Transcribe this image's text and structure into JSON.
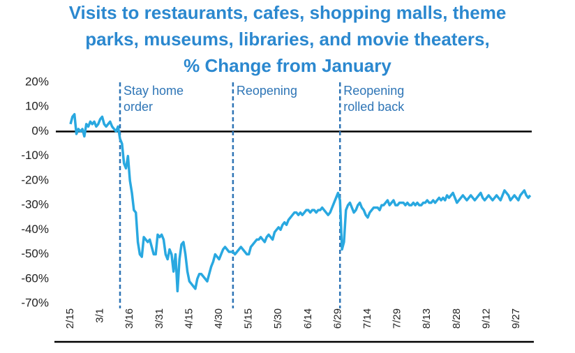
{
  "chart_data": {
    "type": "line",
    "title": [
      "Visits to restaurants, cafes, shopping malls, theme",
      "parks, museums, libraries, and movie theaters,",
      "% Change from January"
    ],
    "categories": [
      "2/15",
      null,
      null,
      null,
      null,
      null,
      null,
      null,
      null,
      null,
      null,
      null,
      null,
      null,
      null,
      "3/1",
      null,
      null,
      null,
      null,
      null,
      null,
      null,
      null,
      null,
      null,
      null,
      null,
      null,
      null,
      "3/16",
      null,
      null,
      null,
      null,
      null,
      null,
      null,
      null,
      null,
      null,
      null,
      null,
      null,
      null,
      "3/31",
      null,
      null,
      null,
      null,
      null,
      null,
      null,
      null,
      null,
      null,
      null,
      null,
      null,
      null,
      "4/15",
      null,
      null,
      null,
      null,
      null,
      null,
      null,
      null,
      null,
      null,
      null,
      null,
      null,
      null,
      "4/30",
      null,
      null,
      null,
      null,
      null,
      null,
      null,
      null,
      null,
      null,
      null,
      null,
      null,
      null,
      "5/15",
      null,
      null,
      null,
      null,
      null,
      null,
      null,
      null,
      null,
      null,
      null,
      null,
      null,
      null,
      "5/30",
      null,
      null,
      null,
      null,
      null,
      null,
      null,
      null,
      null,
      null,
      null,
      null,
      null,
      null,
      "6/14",
      null,
      null,
      null,
      null,
      null,
      null,
      null,
      null,
      null,
      null,
      null,
      null,
      null,
      null,
      "6/29",
      null,
      null,
      null,
      null,
      null,
      null,
      null,
      null,
      null,
      null,
      null,
      null,
      null,
      null,
      "7/14",
      null,
      null,
      null,
      null,
      null,
      null,
      null,
      null,
      null,
      null,
      null,
      null,
      null,
      null,
      "7/29",
      null,
      null,
      null,
      null,
      null,
      null,
      null,
      null,
      null,
      null,
      null,
      null,
      null,
      null,
      "8/13",
      null,
      null,
      null,
      null,
      null,
      null,
      null,
      null,
      null,
      null,
      null,
      null,
      null,
      null,
      "8/28",
      null,
      null,
      null,
      null,
      null,
      null,
      null,
      null,
      null,
      null,
      null,
      null,
      null,
      null,
      "9/12",
      null,
      null,
      null,
      null,
      null,
      null,
      null,
      null,
      null,
      null,
      null,
      null,
      null,
      null,
      "9/27",
      null,
      null,
      null,
      null,
      null,
      null,
      null
    ],
    "values": [
      3,
      6,
      7,
      -1,
      1,
      0,
      1,
      -2,
      3,
      2,
      4,
      3,
      4,
      2,
      3,
      5,
      6,
      3,
      2,
      3,
      4,
      2,
      1,
      0,
      2,
      -3,
      -5,
      -13,
      -15,
      -10,
      -20,
      -25,
      -32,
      -33,
      -45,
      -50,
      -51,
      -43,
      -44,
      -45,
      -44,
      -47,
      -50,
      -50,
      -42,
      -43,
      -42,
      -44,
      -50,
      -52,
      -48,
      -50,
      -57,
      -50,
      -65,
      -52,
      -46,
      -45,
      -50,
      -57,
      -61,
      -62,
      -63,
      -64,
      -60,
      -58,
      -58,
      -59,
      -60,
      -61,
      -58,
      -55,
      -53,
      -50,
      -51,
      -52,
      -50,
      -48,
      -47,
      -48,
      -49,
      -49,
      -49,
      -50,
      -49,
      -48,
      -47,
      -48,
      -49,
      -50,
      -50,
      -47,
      -46,
      -45,
      -44,
      -44,
      -43,
      -44,
      -45,
      -43,
      -42,
      -43,
      -44,
      -41,
      -40,
      -39,
      -40,
      -38,
      -37,
      -38,
      -36,
      -35,
      -34,
      -33,
      -33,
      -34,
      -33,
      -34,
      -33,
      -32,
      -32,
      -33,
      -32,
      -32,
      -33,
      -32,
      -32,
      -31,
      -32,
      -33,
      -34,
      -33,
      -31,
      -29,
      -27,
      -25,
      -28,
      -48,
      -45,
      -32,
      -30,
      -29,
      -31,
      -33,
      -32,
      -30,
      -29,
      -31,
      -32,
      -34,
      -35,
      -33,
      -32,
      -31,
      -31,
      -31,
      -32,
      -30,
      -30,
      -29,
      -28,
      -30,
      -29,
      -28,
      -30,
      -30,
      -29,
      -29,
      -29,
      -30,
      -29,
      -30,
      -30,
      -29,
      -30,
      -29,
      -30,
      -30,
      -29,
      -29,
      -28,
      -29,
      -29,
      -28,
      -29,
      -28,
      -27,
      -28,
      -27,
      -28,
      -26,
      -27,
      -26,
      -25,
      -27,
      -29,
      -28,
      -27,
      -26,
      -27,
      -28,
      -27,
      -26,
      -27,
      -28,
      -27,
      -26,
      -25,
      -27,
      -28,
      -27,
      -26,
      -27,
      -28,
      -27,
      -26,
      -27,
      -28,
      -26,
      -24,
      -25,
      -26,
      -28,
      -27,
      -26,
      -27,
      -28,
      -26,
      -25,
      -24,
      -26,
      -27,
      -26
    ],
    "color": "#29a8e0",
    "ylim": [
      -70,
      20
    ],
    "yticks": [
      {
        "value": -70,
        "label": "-70%"
      },
      {
        "value": -60,
        "label": "-60%"
      },
      {
        "value": -50,
        "label": "-50%"
      },
      {
        "value": -40,
        "label": "-40%"
      },
      {
        "value": -30,
        "label": "-30%"
      },
      {
        "value": -20,
        "label": "-20%"
      },
      {
        "value": -10,
        "label": "-10%"
      },
      {
        "value": 0,
        "label": "0%"
      },
      {
        "value": 10,
        "label": "10%"
      },
      {
        "value": 20,
        "label": "20%"
      }
    ],
    "annotations": [
      {
        "at": 25,
        "lines": [
          "Stay home",
          "order"
        ]
      },
      {
        "at": 82,
        "lines": [
          "Reopening"
        ]
      },
      {
        "at": 136,
        "lines": [
          "Reopening",
          "rolled back"
        ]
      }
    ]
  }
}
